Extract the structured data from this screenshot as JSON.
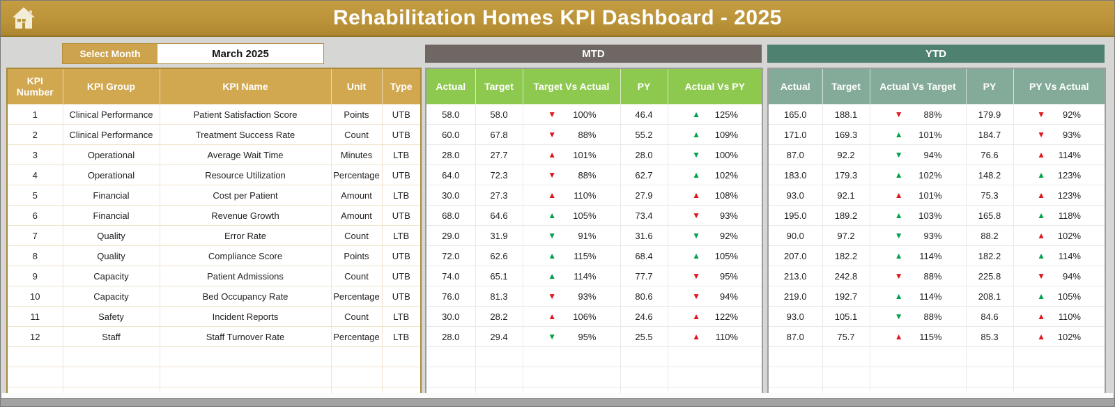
{
  "header": {
    "title": "Rehabilitation Homes KPI Dashboard - 2025"
  },
  "controls": {
    "select_month_label": "Select Month",
    "selected_month": "March 2025"
  },
  "colors": {
    "banner_gold": "#bb9339",
    "table_header_gold": "#d1a850",
    "mtd_bar": "#6f6764",
    "mtd_header_green": "#8dc94e",
    "ytd_bar": "#4f8170",
    "ytd_header_teal": "#84ab99",
    "trend_up_down_red": "#e0151b",
    "trend_up_down_green": "#00a14b"
  },
  "icons": {
    "home": "home-icon",
    "trend_up": "triangle-up",
    "trend_down": "triangle-down"
  },
  "kpi_table": {
    "headers": [
      "KPI Number",
      "KPI Group",
      "KPI Name",
      "Unit",
      "Type"
    ],
    "rows": [
      [
        "1",
        "Clinical Performance",
        "Patient Satisfaction Score",
        "Points",
        "UTB"
      ],
      [
        "2",
        "Clinical Performance",
        "Treatment Success Rate",
        "Count",
        "UTB"
      ],
      [
        "3",
        "Operational",
        "Average Wait Time",
        "Minutes",
        "LTB"
      ],
      [
        "4",
        "Operational",
        "Resource Utilization",
        "Percentage",
        "UTB"
      ],
      [
        "5",
        "Financial",
        "Cost per Patient",
        "Amount",
        "LTB"
      ],
      [
        "6",
        "Financial",
        "Revenue Growth",
        "Amount",
        "UTB"
      ],
      [
        "7",
        "Quality",
        "Error Rate",
        "Count",
        "LTB"
      ],
      [
        "8",
        "Quality",
        "Compliance Score",
        "Points",
        "UTB"
      ],
      [
        "9",
        "Capacity",
        "Patient Admissions",
        "Count",
        "UTB"
      ],
      [
        "10",
        "Capacity",
        "Bed Occupancy Rate",
        "Percentage",
        "UTB"
      ],
      [
        "11",
        "Safety",
        "Incident Reports",
        "Count",
        "LTB"
      ],
      [
        "12",
        "Staff",
        "Staff Turnover Rate",
        "Percentage",
        "LTB"
      ]
    ],
    "empty_rows": 3
  },
  "mtd": {
    "title": "MTD",
    "headers": [
      "Actual",
      "Target",
      "Target Vs Actual",
      "PY",
      "Actual Vs PY"
    ],
    "rows": [
      {
        "actual": "58.0",
        "target": "58.0",
        "tva": {
          "dir": "down",
          "color": "red",
          "value": "100%"
        },
        "py": "46.4",
        "avpy": {
          "dir": "up",
          "color": "green",
          "value": "125%"
        }
      },
      {
        "actual": "60.0",
        "target": "67.8",
        "tva": {
          "dir": "down",
          "color": "red",
          "value": "88%"
        },
        "py": "55.2",
        "avpy": {
          "dir": "up",
          "color": "green",
          "value": "109%"
        }
      },
      {
        "actual": "28.0",
        "target": "27.7",
        "tva": {
          "dir": "up",
          "color": "red",
          "value": "101%"
        },
        "py": "28.0",
        "avpy": {
          "dir": "down",
          "color": "green",
          "value": "100%"
        }
      },
      {
        "actual": "64.0",
        "target": "72.3",
        "tva": {
          "dir": "down",
          "color": "red",
          "value": "88%"
        },
        "py": "62.7",
        "avpy": {
          "dir": "up",
          "color": "green",
          "value": "102%"
        }
      },
      {
        "actual": "30.0",
        "target": "27.3",
        "tva": {
          "dir": "up",
          "color": "red",
          "value": "110%"
        },
        "py": "27.9",
        "avpy": {
          "dir": "up",
          "color": "red",
          "value": "108%"
        }
      },
      {
        "actual": "68.0",
        "target": "64.6",
        "tva": {
          "dir": "up",
          "color": "green",
          "value": "105%"
        },
        "py": "73.4",
        "avpy": {
          "dir": "down",
          "color": "red",
          "value": "93%"
        }
      },
      {
        "actual": "29.0",
        "target": "31.9",
        "tva": {
          "dir": "down",
          "color": "green",
          "value": "91%"
        },
        "py": "31.6",
        "avpy": {
          "dir": "down",
          "color": "green",
          "value": "92%"
        }
      },
      {
        "actual": "72.0",
        "target": "62.6",
        "tva": {
          "dir": "up",
          "color": "green",
          "value": "115%"
        },
        "py": "68.4",
        "avpy": {
          "dir": "up",
          "color": "green",
          "value": "105%"
        }
      },
      {
        "actual": "74.0",
        "target": "65.1",
        "tva": {
          "dir": "up",
          "color": "green",
          "value": "114%"
        },
        "py": "77.7",
        "avpy": {
          "dir": "down",
          "color": "red",
          "value": "95%"
        }
      },
      {
        "actual": "76.0",
        "target": "81.3",
        "tva": {
          "dir": "down",
          "color": "red",
          "value": "93%"
        },
        "py": "80.6",
        "avpy": {
          "dir": "down",
          "color": "red",
          "value": "94%"
        }
      },
      {
        "actual": "30.0",
        "target": "28.2",
        "tva": {
          "dir": "up",
          "color": "red",
          "value": "106%"
        },
        "py": "24.6",
        "avpy": {
          "dir": "up",
          "color": "red",
          "value": "122%"
        }
      },
      {
        "actual": "28.0",
        "target": "29.4",
        "tva": {
          "dir": "down",
          "color": "green",
          "value": "95%"
        },
        "py": "25.5",
        "avpy": {
          "dir": "up",
          "color": "red",
          "value": "110%"
        }
      }
    ],
    "empty_rows": 3
  },
  "ytd": {
    "title": "YTD",
    "headers": [
      "Actual",
      "Target",
      "Actual Vs Target",
      "PY",
      "PY Vs Actual"
    ],
    "rows": [
      {
        "actual": "165.0",
        "target": "188.1",
        "avt": {
          "dir": "down",
          "color": "red",
          "value": "88%"
        },
        "py": "179.9",
        "pyva": {
          "dir": "down",
          "color": "red",
          "value": "92%"
        }
      },
      {
        "actual": "171.0",
        "target": "169.3",
        "avt": {
          "dir": "up",
          "color": "green",
          "value": "101%"
        },
        "py": "184.7",
        "pyva": {
          "dir": "down",
          "color": "red",
          "value": "93%"
        }
      },
      {
        "actual": "87.0",
        "target": "92.2",
        "avt": {
          "dir": "down",
          "color": "green",
          "value": "94%"
        },
        "py": "76.6",
        "pyva": {
          "dir": "up",
          "color": "red",
          "value": "114%"
        }
      },
      {
        "actual": "183.0",
        "target": "179.3",
        "avt": {
          "dir": "up",
          "color": "green",
          "value": "102%"
        },
        "py": "148.2",
        "pyva": {
          "dir": "up",
          "color": "green",
          "value": "123%"
        }
      },
      {
        "actual": "93.0",
        "target": "92.1",
        "avt": {
          "dir": "up",
          "color": "red",
          "value": "101%"
        },
        "py": "75.3",
        "pyva": {
          "dir": "up",
          "color": "red",
          "value": "123%"
        }
      },
      {
        "actual": "195.0",
        "target": "189.2",
        "avt": {
          "dir": "up",
          "color": "green",
          "value": "103%"
        },
        "py": "165.8",
        "pyva": {
          "dir": "up",
          "color": "green",
          "value": "118%"
        }
      },
      {
        "actual": "90.0",
        "target": "97.2",
        "avt": {
          "dir": "down",
          "color": "green",
          "value": "93%"
        },
        "py": "88.2",
        "pyva": {
          "dir": "up",
          "color": "red",
          "value": "102%"
        }
      },
      {
        "actual": "207.0",
        "target": "182.2",
        "avt": {
          "dir": "up",
          "color": "green",
          "value": "114%"
        },
        "py": "182.2",
        "pyva": {
          "dir": "up",
          "color": "green",
          "value": "114%"
        }
      },
      {
        "actual": "213.0",
        "target": "242.8",
        "avt": {
          "dir": "down",
          "color": "red",
          "value": "88%"
        },
        "py": "225.8",
        "pyva": {
          "dir": "down",
          "color": "red",
          "value": "94%"
        }
      },
      {
        "actual": "219.0",
        "target": "192.7",
        "avt": {
          "dir": "up",
          "color": "green",
          "value": "114%"
        },
        "py": "208.1",
        "pyva": {
          "dir": "up",
          "color": "green",
          "value": "105%"
        }
      },
      {
        "actual": "93.0",
        "target": "105.1",
        "avt": {
          "dir": "down",
          "color": "green",
          "value": "88%"
        },
        "py": "84.6",
        "pyva": {
          "dir": "up",
          "color": "red",
          "value": "110%"
        }
      },
      {
        "actual": "87.0",
        "target": "75.7",
        "avt": {
          "dir": "up",
          "color": "red",
          "value": "115%"
        },
        "py": "85.3",
        "pyva": {
          "dir": "up",
          "color": "red",
          "value": "102%"
        }
      }
    ],
    "empty_rows": 3
  }
}
